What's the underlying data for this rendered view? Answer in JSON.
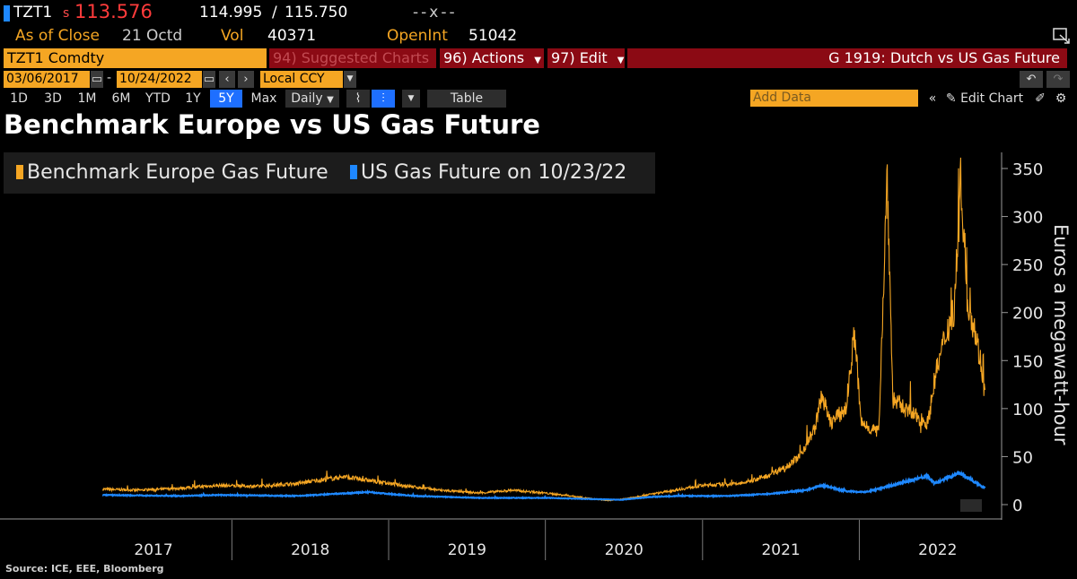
{
  "header": {
    "ticker": "TZT1",
    "price_prefix": "s",
    "price": "113.576",
    "bid": "114.995",
    "separator": "/",
    "ask": "115.750",
    "change": "--x--",
    "asof_label": "As of Close",
    "asof_date": "21 Octd",
    "vol_label": "Vol",
    "vol_value": "40371",
    "openint_label": "OpenInt",
    "openint_value": "51042"
  },
  "toolbar": {
    "security": "TZT1 Comdty",
    "suggested": "94) Suggested Charts",
    "actions": "96) Actions",
    "edit": "97) Edit",
    "chart_name": "G 1919: Dutch vs US Gas Future",
    "start_date": "03/06/2017",
    "end_date": "10/24/2022",
    "dash": "-",
    "currency": "Local CCY",
    "ranges": [
      "1D",
      "3D",
      "1M",
      "6M",
      "YTD",
      "1Y",
      "5Y",
      "Max"
    ],
    "active_range": "5Y",
    "period": "Daily",
    "table_label": "Table",
    "add_data_placeholder": "Add Data",
    "edit_chart": "Edit Chart"
  },
  "colors": {
    "europe": "#f5a623",
    "us": "#1e88ff",
    "accent_red": "#8b0a14"
  },
  "chart_data": {
    "type": "line",
    "title": "Benchmark Europe vs US Gas Future",
    "ylabel": "Euros a megawatt-hour",
    "ylim": [
      0,
      350
    ],
    "yticks": [
      0,
      50,
      100,
      150,
      200,
      250,
      300,
      350
    ],
    "xlabels": [
      "2017",
      "2018",
      "2019",
      "2020",
      "2021",
      "2022"
    ],
    "series": [
      {
        "name": "Benchmark Europe Gas Future",
        "points": [
          [
            "2017-03-06",
            16
          ],
          [
            "2017-06-01",
            15
          ],
          [
            "2017-09-01",
            17
          ],
          [
            "2017-12-01",
            20
          ],
          [
            "2018-03-01",
            19
          ],
          [
            "2018-06-01",
            22
          ],
          [
            "2018-08-01",
            26
          ],
          [
            "2018-09-20",
            29
          ],
          [
            "2018-12-01",
            24
          ],
          [
            "2019-02-01",
            20
          ],
          [
            "2019-05-01",
            15
          ],
          [
            "2019-08-01",
            12
          ],
          [
            "2019-10-15",
            15
          ],
          [
            "2020-01-01",
            12
          ],
          [
            "2020-03-01",
            9
          ],
          [
            "2020-05-25",
            4
          ],
          [
            "2020-07-01",
            6
          ],
          [
            "2020-10-01",
            13
          ],
          [
            "2021-01-01",
            20
          ],
          [
            "2021-04-01",
            22
          ],
          [
            "2021-06-01",
            30
          ],
          [
            "2021-07-15",
            40
          ],
          [
            "2021-08-15",
            50
          ],
          [
            "2021-09-20",
            80
          ],
          [
            "2021-10-06",
            115
          ],
          [
            "2021-10-25",
            85
          ],
          [
            "2021-12-01",
            100
          ],
          [
            "2021-12-21",
            180
          ],
          [
            "2022-01-05",
            85
          ],
          [
            "2022-02-15",
            75
          ],
          [
            "2022-03-07",
            345
          ],
          [
            "2022-03-20",
            110
          ],
          [
            "2022-05-01",
            95
          ],
          [
            "2022-06-10",
            85
          ],
          [
            "2022-06-25",
            130
          ],
          [
            "2022-07-20",
            175
          ],
          [
            "2022-08-10",
            205
          ],
          [
            "2022-08-26",
            340
          ],
          [
            "2022-09-10",
            210
          ],
          [
            "2022-09-26",
            185
          ],
          [
            "2022-10-10",
            150
          ],
          [
            "2022-10-21",
            113
          ]
        ]
      },
      {
        "name": "US Gas Future on 10/23/22",
        "points": [
          [
            "2017-03-06",
            10
          ],
          [
            "2017-09-01",
            9
          ],
          [
            "2017-12-01",
            10
          ],
          [
            "2018-06-01",
            9
          ],
          [
            "2018-11-15",
            13
          ],
          [
            "2019-03-01",
            9
          ],
          [
            "2019-08-01",
            7
          ],
          [
            "2020-01-01",
            7
          ],
          [
            "2020-06-25",
            5
          ],
          [
            "2020-09-01",
            8
          ],
          [
            "2020-11-01",
            9
          ],
          [
            "2021-03-01",
            9
          ],
          [
            "2021-06-01",
            11
          ],
          [
            "2021-09-01",
            15
          ],
          [
            "2021-10-06",
            20
          ],
          [
            "2021-12-01",
            14
          ],
          [
            "2022-01-15",
            13
          ],
          [
            "2022-03-01",
            18
          ],
          [
            "2022-04-20",
            24
          ],
          [
            "2022-06-08",
            30
          ],
          [
            "2022-06-25",
            22
          ],
          [
            "2022-08-22",
            33
          ],
          [
            "2022-09-15",
            27
          ],
          [
            "2022-10-21",
            17
          ]
        ]
      }
    ]
  },
  "footer": {
    "source": "Source: ICE, EEE, Bloomberg"
  }
}
